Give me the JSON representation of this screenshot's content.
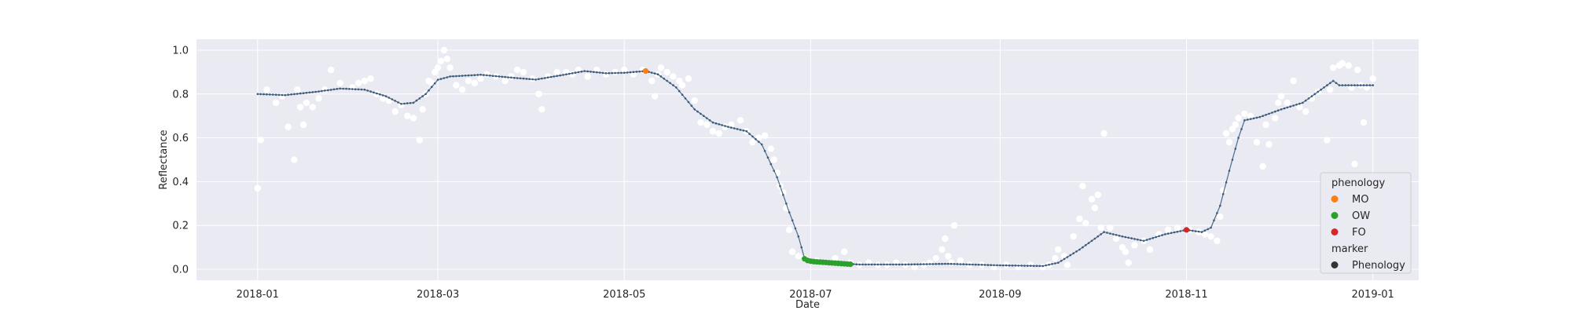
{
  "chart_data": {
    "type": "scatter",
    "title": "",
    "xlabel": "Date",
    "ylabel": "Reflectance",
    "xlim": [
      "2017-12-12",
      "2019-01-16"
    ],
    "ylim": [
      -0.05,
      1.05
    ],
    "x_ticks": [
      "2018-01-01",
      "2018-03-01",
      "2018-05-01",
      "2018-07-01",
      "2018-09-01",
      "2018-11-01",
      "2019-01-01"
    ],
    "x_tick_labels": [
      "2018-01",
      "2018-03",
      "2018-05",
      "2018-07",
      "2018-09",
      "2018-11",
      "2019-01"
    ],
    "y_ticks": [
      0.0,
      0.2,
      0.4,
      0.6,
      0.8,
      1.0
    ],
    "y_tick_labels": [
      "0.0",
      "0.2",
      "0.4",
      "0.6",
      "0.8",
      "1.0"
    ],
    "grid": true,
    "legend": {
      "placement": "lower-right",
      "sections": [
        {
          "title": "phenology",
          "entries": [
            {
              "label": "MO",
              "color": "#ff7f0e"
            },
            {
              "label": "OW",
              "color": "#2ca02c"
            },
            {
              "label": "FO",
              "color": "#d62728"
            }
          ]
        },
        {
          "title": "marker",
          "entries": [
            {
              "label": "Phenology",
              "color": "#333333"
            }
          ]
        }
      ]
    },
    "colors": {
      "background": "#eaeaf2",
      "grid": "#ffffff",
      "observations": "#ffffff",
      "smoothed": "#4a6a8a"
    },
    "observations": [
      [
        "2018-01-01",
        0.37
      ],
      [
        "2018-01-02",
        0.59
      ],
      [
        "2018-01-04",
        0.82
      ],
      [
        "2018-01-07",
        0.76
      ],
      [
        "2018-01-09",
        0.79
      ],
      [
        "2018-01-11",
        0.65
      ],
      [
        "2018-01-13",
        0.5
      ],
      [
        "2018-01-14",
        0.82
      ],
      [
        "2018-01-15",
        0.74
      ],
      [
        "2018-01-16",
        0.66
      ],
      [
        "2018-01-17",
        0.76
      ],
      [
        "2018-01-19",
        0.74
      ],
      [
        "2018-01-21",
        0.78
      ],
      [
        "2018-01-23",
        0.82
      ],
      [
        "2018-01-25",
        0.91
      ],
      [
        "2018-01-28",
        0.85
      ],
      [
        "2018-02-01",
        0.83
      ],
      [
        "2018-02-03",
        0.85
      ],
      [
        "2018-02-05",
        0.86
      ],
      [
        "2018-02-07",
        0.87
      ],
      [
        "2018-02-09",
        0.8
      ],
      [
        "2018-02-11",
        0.78
      ],
      [
        "2018-02-13",
        0.77
      ],
      [
        "2018-02-15",
        0.72
      ],
      [
        "2018-02-17",
        0.75
      ],
      [
        "2018-02-19",
        0.7
      ],
      [
        "2018-02-21",
        0.69
      ],
      [
        "2018-02-23",
        0.59
      ],
      [
        "2018-02-24",
        0.73
      ],
      [
        "2018-02-25",
        0.8
      ],
      [
        "2018-02-26",
        0.86
      ],
      [
        "2018-02-27",
        0.85
      ],
      [
        "2018-02-28",
        0.9
      ],
      [
        "2018-03-01",
        0.92
      ],
      [
        "2018-03-02",
        0.95
      ],
      [
        "2018-03-03",
        1.0
      ],
      [
        "2018-03-04",
        0.96
      ],
      [
        "2018-03-05",
        0.92
      ],
      [
        "2018-03-07",
        0.84
      ],
      [
        "2018-03-09",
        0.82
      ],
      [
        "2018-03-11",
        0.86
      ],
      [
        "2018-03-13",
        0.85
      ],
      [
        "2018-03-15",
        0.87
      ],
      [
        "2018-03-17",
        0.89
      ],
      [
        "2018-03-20",
        0.88
      ],
      [
        "2018-03-23",
        0.86
      ],
      [
        "2018-03-25",
        0.88
      ],
      [
        "2018-03-27",
        0.91
      ],
      [
        "2018-03-29",
        0.9
      ],
      [
        "2018-04-01",
        0.87
      ],
      [
        "2018-04-03",
        0.8
      ],
      [
        "2018-04-04",
        0.73
      ],
      [
        "2018-04-06",
        0.88
      ],
      [
        "2018-04-09",
        0.9
      ],
      [
        "2018-04-12",
        0.9
      ],
      [
        "2018-04-14",
        0.89
      ],
      [
        "2018-04-16",
        0.91
      ],
      [
        "2018-04-19",
        0.88
      ],
      [
        "2018-04-22",
        0.91
      ],
      [
        "2018-04-25",
        0.89
      ],
      [
        "2018-04-28",
        0.9
      ],
      [
        "2018-05-01",
        0.91
      ],
      [
        "2018-05-04",
        0.89
      ],
      [
        "2018-05-07",
        0.91
      ],
      [
        "2018-05-10",
        0.86
      ],
      [
        "2018-05-11",
        0.79
      ],
      [
        "2018-05-12",
        0.89
      ],
      [
        "2018-05-13",
        0.92
      ],
      [
        "2018-05-15",
        0.9
      ],
      [
        "2018-05-17",
        0.88
      ],
      [
        "2018-05-19",
        0.86
      ],
      [
        "2018-05-20",
        0.84
      ],
      [
        "2018-05-22",
        0.87
      ],
      [
        "2018-05-24",
        0.77
      ],
      [
        "2018-05-26",
        0.67
      ],
      [
        "2018-05-28",
        0.66
      ],
      [
        "2018-05-30",
        0.63
      ],
      [
        "2018-06-01",
        0.62
      ],
      [
        "2018-06-03",
        0.65
      ],
      [
        "2018-06-05",
        0.66
      ],
      [
        "2018-06-08",
        0.68
      ],
      [
        "2018-06-10",
        0.63
      ],
      [
        "2018-06-12",
        0.58
      ],
      [
        "2018-06-14",
        0.6
      ],
      [
        "2018-06-16",
        0.61
      ],
      [
        "2018-06-18",
        0.55
      ],
      [
        "2018-06-19",
        0.5
      ],
      [
        "2018-06-20",
        0.44
      ],
      [
        "2018-06-21",
        0.38
      ],
      [
        "2018-06-22",
        0.35
      ],
      [
        "2018-06-23",
        0.28
      ],
      [
        "2018-06-24",
        0.18
      ],
      [
        "2018-06-25",
        0.08
      ],
      [
        "2018-06-27",
        0.06
      ],
      [
        "2018-06-29",
        0.05
      ],
      [
        "2018-07-03",
        0.04
      ],
      [
        "2018-07-06",
        0.03
      ],
      [
        "2018-07-09",
        0.05
      ],
      [
        "2018-07-12",
        0.08
      ],
      [
        "2018-07-14",
        0.03
      ],
      [
        "2018-07-17",
        0.02
      ],
      [
        "2018-07-20",
        0.03
      ],
      [
        "2018-07-23",
        0.02
      ],
      [
        "2018-07-26",
        0.02
      ],
      [
        "2018-07-29",
        0.03
      ],
      [
        "2018-08-01",
        0.02
      ],
      [
        "2018-08-04",
        0.01
      ],
      [
        "2018-08-07",
        0.02
      ],
      [
        "2018-08-09",
        0.03
      ],
      [
        "2018-08-11",
        0.05
      ],
      [
        "2018-08-13",
        0.09
      ],
      [
        "2018-08-14",
        0.14
      ],
      [
        "2018-08-15",
        0.06
      ],
      [
        "2018-08-16",
        0.03
      ],
      [
        "2018-08-17",
        0.2
      ],
      [
        "2018-08-19",
        0.04
      ],
      [
        "2018-08-22",
        0.02
      ],
      [
        "2018-08-26",
        0.02
      ],
      [
        "2018-08-30",
        0.01
      ],
      [
        "2018-09-03",
        0.02
      ],
      [
        "2018-09-07",
        0.01
      ],
      [
        "2018-09-11",
        0.02
      ],
      [
        "2018-09-15",
        0.01
      ],
      [
        "2018-09-17",
        0.02
      ],
      [
        "2018-09-19",
        0.05
      ],
      [
        "2018-09-20",
        0.09
      ],
      [
        "2018-09-22",
        0.06
      ],
      [
        "2018-09-23",
        0.02
      ],
      [
        "2018-09-25",
        0.15
      ],
      [
        "2018-09-27",
        0.23
      ],
      [
        "2018-09-28",
        0.38
      ],
      [
        "2018-09-29",
        0.21
      ],
      [
        "2018-10-01",
        0.32
      ],
      [
        "2018-10-02",
        0.28
      ],
      [
        "2018-10-03",
        0.34
      ],
      [
        "2018-10-04",
        0.19
      ],
      [
        "2018-10-05",
        0.62
      ],
      [
        "2018-10-07",
        0.19
      ],
      [
        "2018-10-09",
        0.14
      ],
      [
        "2018-10-11",
        0.1
      ],
      [
        "2018-10-12",
        0.08
      ],
      [
        "2018-10-13",
        0.03
      ],
      [
        "2018-10-15",
        0.11
      ],
      [
        "2018-10-18",
        0.13
      ],
      [
        "2018-10-20",
        0.09
      ],
      [
        "2018-10-23",
        0.16
      ],
      [
        "2018-10-26",
        0.18
      ],
      [
        "2018-10-29",
        0.19
      ],
      [
        "2018-11-02",
        0.18
      ],
      [
        "2018-11-05",
        0.17
      ],
      [
        "2018-11-07",
        0.16
      ],
      [
        "2018-11-09",
        0.15
      ],
      [
        "2018-11-11",
        0.13
      ],
      [
        "2018-11-12",
        0.24
      ],
      [
        "2018-11-13",
        0.36
      ],
      [
        "2018-11-14",
        0.62
      ],
      [
        "2018-11-15",
        0.58
      ],
      [
        "2018-11-16",
        0.64
      ],
      [
        "2018-11-17",
        0.66
      ],
      [
        "2018-11-18",
        0.69
      ],
      [
        "2018-11-20",
        0.71
      ],
      [
        "2018-11-22",
        0.7
      ],
      [
        "2018-11-24",
        0.58
      ],
      [
        "2018-11-26",
        0.47
      ],
      [
        "2018-11-27",
        0.66
      ],
      [
        "2018-11-28",
        0.57
      ],
      [
        "2018-11-30",
        0.69
      ],
      [
        "2018-12-01",
        0.76
      ],
      [
        "2018-12-02",
        0.79
      ],
      [
        "2018-12-04",
        0.76
      ],
      [
        "2018-12-06",
        0.86
      ],
      [
        "2018-12-08",
        0.74
      ],
      [
        "2018-12-10",
        0.72
      ],
      [
        "2018-12-12",
        0.78
      ],
      [
        "2018-12-14",
        0.81
      ],
      [
        "2018-12-17",
        0.59
      ],
      [
        "2018-12-18",
        0.82
      ],
      [
        "2018-12-19",
        0.92
      ],
      [
        "2018-12-21",
        0.93
      ],
      [
        "2018-12-22",
        0.94
      ],
      [
        "2018-12-24",
        0.93
      ],
      [
        "2018-12-25",
        0.83
      ],
      [
        "2018-12-26",
        0.48
      ],
      [
        "2018-12-27",
        0.91
      ],
      [
        "2018-12-28",
        0.84
      ],
      [
        "2018-12-29",
        0.67
      ],
      [
        "2018-12-30",
        0.83
      ],
      [
        "2019-01-01",
        0.87
      ]
    ],
    "smoothed_curve": [
      [
        "2018-01-01",
        0.8
      ],
      [
        "2018-01-10",
        0.795
      ],
      [
        "2018-01-20",
        0.81
      ],
      [
        "2018-01-28",
        0.825
      ],
      [
        "2018-02-05",
        0.82
      ],
      [
        "2018-02-12",
        0.79
      ],
      [
        "2018-02-17",
        0.755
      ],
      [
        "2018-02-21",
        0.76
      ],
      [
        "2018-02-25",
        0.8
      ],
      [
        "2018-03-01",
        0.865
      ],
      [
        "2018-03-05",
        0.88
      ],
      [
        "2018-03-15",
        0.888
      ],
      [
        "2018-03-25",
        0.875
      ],
      [
        "2018-04-02",
        0.866
      ],
      [
        "2018-04-10",
        0.885
      ],
      [
        "2018-04-18",
        0.905
      ],
      [
        "2018-04-25",
        0.895
      ],
      [
        "2018-05-01",
        0.897
      ],
      [
        "2018-05-08",
        0.905
      ],
      [
        "2018-05-12",
        0.89
      ],
      [
        "2018-05-18",
        0.83
      ],
      [
        "2018-05-24",
        0.73
      ],
      [
        "2018-05-30",
        0.67
      ],
      [
        "2018-06-04",
        0.65
      ],
      [
        "2018-06-10",
        0.63
      ],
      [
        "2018-06-15",
        0.57
      ],
      [
        "2018-06-20",
        0.42
      ],
      [
        "2018-06-24",
        0.26
      ],
      [
        "2018-06-27",
        0.15
      ],
      [
        "2018-06-29",
        0.05
      ],
      [
        "2018-07-03",
        0.035
      ],
      [
        "2018-07-10",
        0.027
      ],
      [
        "2018-07-17",
        0.022
      ],
      [
        "2018-08-01",
        0.022
      ],
      [
        "2018-08-15",
        0.025
      ],
      [
        "2018-09-01",
        0.018
      ],
      [
        "2018-09-15",
        0.015
      ],
      [
        "2018-09-20",
        0.03
      ],
      [
        "2018-09-27",
        0.09
      ],
      [
        "2018-10-05",
        0.17
      ],
      [
        "2018-10-11",
        0.15
      ],
      [
        "2018-10-18",
        0.13
      ],
      [
        "2018-10-25",
        0.16
      ],
      [
        "2018-11-01",
        0.18
      ],
      [
        "2018-11-06",
        0.17
      ],
      [
        "2018-11-09",
        0.19
      ],
      [
        "2018-11-12",
        0.29
      ],
      [
        "2018-11-15",
        0.45
      ],
      [
        "2018-11-18",
        0.6
      ],
      [
        "2018-11-20",
        0.68
      ],
      [
        "2018-11-25",
        0.695
      ],
      [
        "2018-12-02",
        0.73
      ],
      [
        "2018-12-09",
        0.76
      ],
      [
        "2018-12-15",
        0.82
      ],
      [
        "2018-12-19",
        0.86
      ],
      [
        "2018-12-21",
        0.84
      ],
      [
        "2019-01-01",
        0.84
      ]
    ],
    "phenology_points": [
      {
        "stage": "MO",
        "color": "#ff7f0e",
        "points": [
          [
            "2018-05-08",
            0.905
          ]
        ]
      },
      {
        "stage": "OW",
        "color": "#2ca02c",
        "points": [
          [
            "2018-06-29",
            0.048
          ],
          [
            "2018-06-30",
            0.04
          ],
          [
            "2018-07-01",
            0.037
          ],
          [
            "2018-07-02",
            0.035
          ],
          [
            "2018-07-03",
            0.034
          ],
          [
            "2018-07-04",
            0.033
          ],
          [
            "2018-07-05",
            0.032
          ],
          [
            "2018-07-06",
            0.031
          ],
          [
            "2018-07-07",
            0.03
          ],
          [
            "2018-07-08",
            0.029
          ],
          [
            "2018-07-09",
            0.028
          ],
          [
            "2018-07-10",
            0.027
          ],
          [
            "2018-07-11",
            0.026
          ],
          [
            "2018-07-12",
            0.025
          ],
          [
            "2018-07-13",
            0.024
          ],
          [
            "2018-07-14",
            0.023
          ]
        ]
      },
      {
        "stage": "FO",
        "color": "#d62728",
        "points": [
          [
            "2018-11-01",
            0.18
          ]
        ]
      }
    ]
  }
}
